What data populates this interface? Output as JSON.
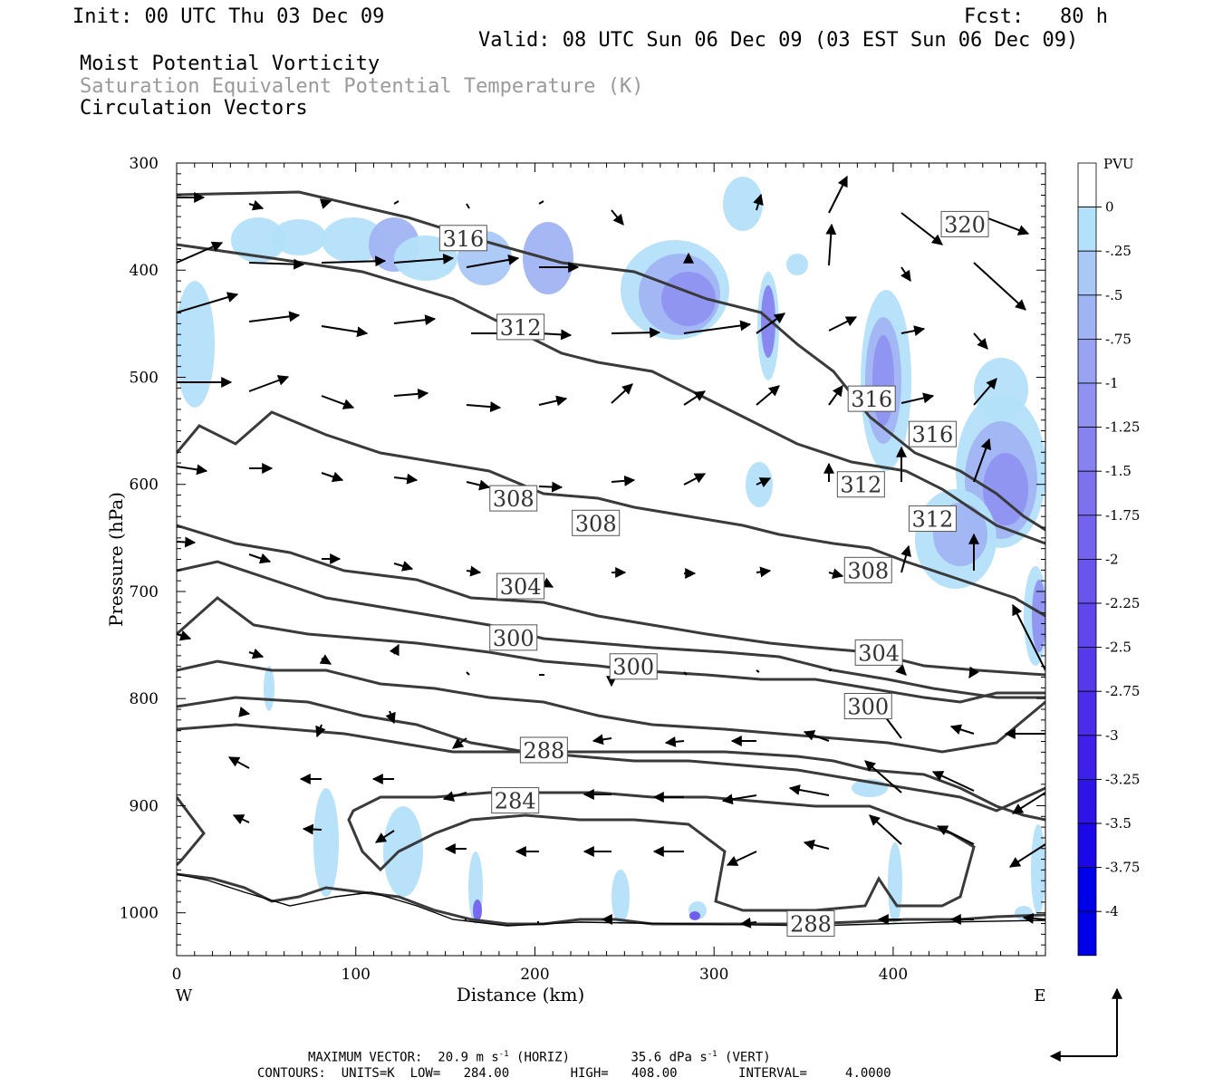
{
  "header": {
    "init": "Init: 00 UTC Thu 03 Dec 09",
    "fcst": "Fcst:   80 h",
    "valid": "Valid: 08 UTC Sun 06 Dec 09 (03 EST Sun 06 Dec 09)",
    "field1": "Moist Potential Vorticity",
    "field2": "Saturation Equivalent Potential Temperature (K)",
    "field3": "Circulation Vectors"
  },
  "footer": {
    "max_vector_label": "MAXIMUM VECTOR:",
    "max_horiz": "20.9 m s",
    "horiz_tag": "(HORIZ)",
    "max_vert": "35.6 dPa s",
    "vert_tag": "(VERT)",
    "exp": "-1",
    "contours_line": "CONTOURS:  UNITS=K  LOW=   284.00        HIGH=   408.00        INTERVAL=     4.0000"
  },
  "colors": {
    "contour": "#3a3a3a",
    "pv_scale": [
      "#ffffff",
      "#b3e0fa",
      "#a9c8f5",
      "#a0b4f3",
      "#98a3f2",
      "#8f92f1",
      "#8682ef",
      "#7d72ee",
      "#7463ed",
      "#6a55ec",
      "#6047eb",
      "#553aea",
      "#4a2de9",
      "#3e20e9",
      "#2f14e8",
      "#1a08e8",
      "#0000e8"
    ]
  },
  "chart_data": {
    "type": "cross-section",
    "xlabel": "Distance (km)",
    "ylabel": "Pressure (hPa)",
    "xlim": [
      0,
      485
    ],
    "ylim": [
      1040,
      300
    ],
    "xticks": [
      0,
      100,
      200,
      300,
      400
    ],
    "yticks": [
      300,
      400,
      500,
      600,
      700,
      800,
      900,
      1000
    ],
    "x_end_labels": [
      "W",
      "E"
    ],
    "colorbar": {
      "title": "PVU",
      "labels": [
        "0",
        "-.25",
        "-.5",
        "-.75",
        "-1",
        "-1.25",
        "-1.5",
        "-1.75",
        "-2",
        "-2.25",
        "-2.5",
        "-2.75",
        "-3",
        "-3.25",
        "-3.5",
        "-3.75",
        "-4"
      ]
    },
    "contour_labels": [
      {
        "text": "316",
        "x": 160,
        "p": 370
      },
      {
        "text": "320",
        "x": 440,
        "p": 357
      },
      {
        "text": "312",
        "x": 192,
        "p": 453
      },
      {
        "text": "316",
        "x": 388,
        "p": 520
      },
      {
        "text": "316",
        "x": 422,
        "p": 553
      },
      {
        "text": "312",
        "x": 382,
        "p": 600
      },
      {
        "text": "308",
        "x": 188,
        "p": 613
      },
      {
        "text": "308",
        "x": 234,
        "p": 636
      },
      {
        "text": "312",
        "x": 422,
        "p": 632
      },
      {
        "text": "308",
        "x": 386,
        "p": 680
      },
      {
        "text": "304",
        "x": 192,
        "p": 695
      },
      {
        "text": "300",
        "x": 188,
        "p": 743
      },
      {
        "text": "304",
        "x": 392,
        "p": 757
      },
      {
        "text": "300",
        "x": 255,
        "p": 770
      },
      {
        "text": "300",
        "x": 386,
        "p": 807
      },
      {
        "text": "288",
        "x": 205,
        "p": 848
      },
      {
        "text": "284",
        "x": 189,
        "p": 895
      },
      {
        "text": "288",
        "x": 354,
        "p": 1010
      }
    ]
  }
}
